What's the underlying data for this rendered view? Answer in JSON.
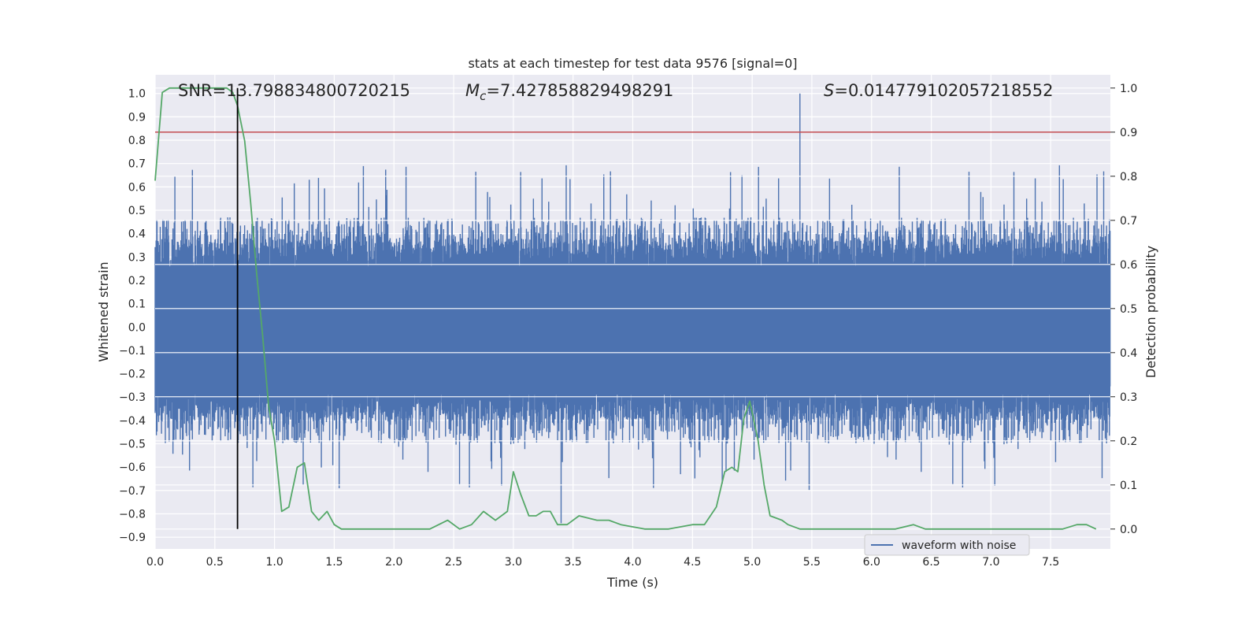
{
  "chart_data": {
    "type": "line",
    "title": "stats at each timestep for test data 9576 [signal=0]",
    "xlabel": "Time (s)",
    "ylabel": "Whitened strain",
    "y2label": "Detection probability",
    "xlim": [
      0,
      8
    ],
    "ylim": [
      -0.95,
      1.08
    ],
    "y2lim": [
      -0.045,
      1.03
    ],
    "xticks": [
      "0.0",
      "0.5",
      "1.0",
      "1.5",
      "2.0",
      "2.5",
      "3.0",
      "3.5",
      "4.0",
      "4.5",
      "5.0",
      "5.5",
      "6.0",
      "6.5",
      "7.0",
      "7.5"
    ],
    "yticks": [
      "-0.9",
      "-0.8",
      "-0.7",
      "-0.6",
      "-0.5",
      "-0.4",
      "-0.3",
      "-0.2",
      "-0.1",
      "0.0",
      "0.1",
      "0.2",
      "0.3",
      "0.4",
      "0.5",
      "0.6",
      "0.7",
      "0.8",
      "0.9",
      "1.0"
    ],
    "y2ticks": [
      "0.0",
      "0.1",
      "0.2",
      "0.3",
      "0.4",
      "0.5",
      "0.6",
      "0.7",
      "0.8",
      "0.9",
      "1.0"
    ],
    "annotations": {
      "snr": "SNR=13.798834800720215",
      "mc_symbol": "M",
      "mc_sub": "c",
      "mc_value": "=7.427858829498291",
      "s_symbol": "S",
      "s_value": "=0.014779102057218552"
    },
    "threshold": 0.9,
    "marker_time": 0.69,
    "legend": {
      "label": "waveform with noise",
      "position": "lower-right"
    },
    "series": [
      {
        "name": "waveform with noise",
        "axis": "left",
        "kind": "noise",
        "typical_amplitude": 0.45,
        "peak": {
          "x": 5.4,
          "y": 1.0
        },
        "trough": {
          "x": 3.4,
          "y": -0.84
        }
      },
      {
        "axis": "right",
        "kind": "probability",
        "x": [
          0.0,
          0.06,
          0.12,
          0.2,
          0.3,
          0.4,
          0.5,
          0.6,
          0.65,
          0.69,
          0.75,
          0.8,
          0.85,
          0.9,
          0.95,
          1.0,
          1.06,
          1.12,
          1.19,
          1.25,
          1.31,
          1.37,
          1.44,
          1.5,
          1.56,
          1.75,
          2.0,
          2.15,
          2.3,
          2.45,
          2.55,
          2.65,
          2.75,
          2.85,
          2.95,
          3.0,
          3.06,
          3.13,
          3.19,
          3.25,
          3.31,
          3.37,
          3.45,
          3.55,
          3.7,
          3.8,
          3.9,
          4.1,
          4.3,
          4.5,
          4.6,
          4.7,
          4.77,
          4.83,
          4.88,
          4.93,
          4.98,
          5.05,
          5.1,
          5.15,
          5.25,
          5.3,
          5.4,
          5.6,
          5.75,
          6.0,
          6.2,
          6.35,
          6.45,
          6.6,
          6.8,
          7.0,
          7.2,
          7.4,
          7.5,
          7.6,
          7.72,
          7.8,
          7.88
        ],
        "y": [
          0.79,
          0.99,
          1.0,
          1.0,
          1.0,
          1.0,
          1.0,
          1.0,
          0.99,
          0.96,
          0.88,
          0.74,
          0.58,
          0.44,
          0.28,
          0.2,
          0.04,
          0.05,
          0.14,
          0.15,
          0.04,
          0.02,
          0.04,
          0.01,
          0.0,
          0.0,
          0.0,
          0.0,
          0.0,
          0.02,
          0.0,
          0.01,
          0.04,
          0.02,
          0.04,
          0.13,
          0.08,
          0.03,
          0.03,
          0.04,
          0.04,
          0.01,
          0.01,
          0.03,
          0.02,
          0.02,
          0.01,
          0.0,
          0.0,
          0.01,
          0.01,
          0.05,
          0.13,
          0.14,
          0.13,
          0.25,
          0.29,
          0.2,
          0.1,
          0.03,
          0.02,
          0.01,
          0.0,
          0.0,
          0.0,
          0.0,
          0.0,
          0.01,
          0.0,
          0.0,
          0.0,
          0.0,
          0.0,
          0.0,
          0.0,
          0.0,
          0.01,
          0.01,
          0.0
        ]
      }
    ],
    "colors": {
      "background": "#eaeaf2",
      "grid": "#ffffff",
      "noise": "#4c72b0",
      "probability": "#55a868",
      "threshold": "#c44e52",
      "marker": "#000000"
    }
  }
}
